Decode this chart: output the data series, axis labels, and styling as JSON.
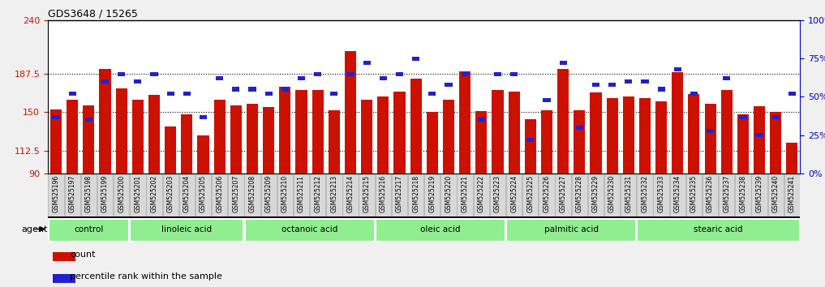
{
  "title": "GDS3648 / 15265",
  "samples": [
    "GSM525196",
    "GSM525197",
    "GSM525198",
    "GSM525199",
    "GSM525200",
    "GSM525201",
    "GSM525202",
    "GSM525203",
    "GSM525204",
    "GSM525205",
    "GSM525206",
    "GSM525207",
    "GSM525208",
    "GSM525209",
    "GSM525210",
    "GSM525211",
    "GSM525212",
    "GSM525213",
    "GSM525214",
    "GSM525215",
    "GSM525216",
    "GSM525217",
    "GSM525218",
    "GSM525219",
    "GSM525220",
    "GSM525221",
    "GSM525222",
    "GSM525223",
    "GSM525224",
    "GSM525225",
    "GSM525226",
    "GSM525227",
    "GSM525228",
    "GSM525229",
    "GSM525230",
    "GSM525231",
    "GSM525232",
    "GSM525233",
    "GSM525234",
    "GSM525235",
    "GSM525236",
    "GSM525237",
    "GSM525238",
    "GSM525239",
    "GSM525240",
    "GSM525241"
  ],
  "counts": [
    153,
    162,
    157,
    192,
    173,
    162,
    167,
    136,
    148,
    127,
    162,
    157,
    158,
    155,
    175,
    172,
    172,
    152,
    210,
    162,
    165,
    170,
    183,
    150,
    162,
    190,
    151,
    172,
    170,
    143,
    152,
    192,
    152,
    169,
    164,
    165,
    164,
    161,
    189,
    168,
    158,
    172,
    148,
    156,
    150,
    120
  ],
  "percentile_ranks": [
    37,
    52,
    35,
    60,
    65,
    60,
    65,
    52,
    52,
    37,
    62,
    55,
    55,
    52,
    55,
    62,
    65,
    52,
    65,
    72,
    62,
    65,
    75,
    52,
    58,
    65,
    35,
    65,
    65,
    22,
    48,
    72,
    30,
    58,
    58,
    60,
    60,
    55,
    68,
    52,
    28,
    62,
    37,
    25,
    37,
    52
  ],
  "groups": [
    {
      "label": "control",
      "start": 0,
      "end": 5
    },
    {
      "label": "linoleic acid",
      "start": 5,
      "end": 12
    },
    {
      "label": "octanoic acid",
      "start": 12,
      "end": 20
    },
    {
      "label": "oleic acid",
      "start": 20,
      "end": 28
    },
    {
      "label": "palmitic acid",
      "start": 28,
      "end": 36
    },
    {
      "label": "stearic acid",
      "start": 36,
      "end": 46
    }
  ],
  "y_min": 90,
  "y_max": 240,
  "y_ticks_left": [
    90,
    112.5,
    150,
    187.5,
    240
  ],
  "y_ticks_right_vals": [
    0,
    25,
    50,
    75,
    100
  ],
  "bar_color": "#CC1100",
  "percentile_color": "#2222CC",
  "bg_color": "#F0F0F0",
  "plot_bg": "#FFFFFF",
  "xlabel_bg": "#D0D0D0",
  "group_color": "#90EE90",
  "group_border": "#FFFFFF",
  "tick_label_color_left": "#CC1100",
  "tick_label_color_right": "#0000CC",
  "bar_width": 0.7
}
